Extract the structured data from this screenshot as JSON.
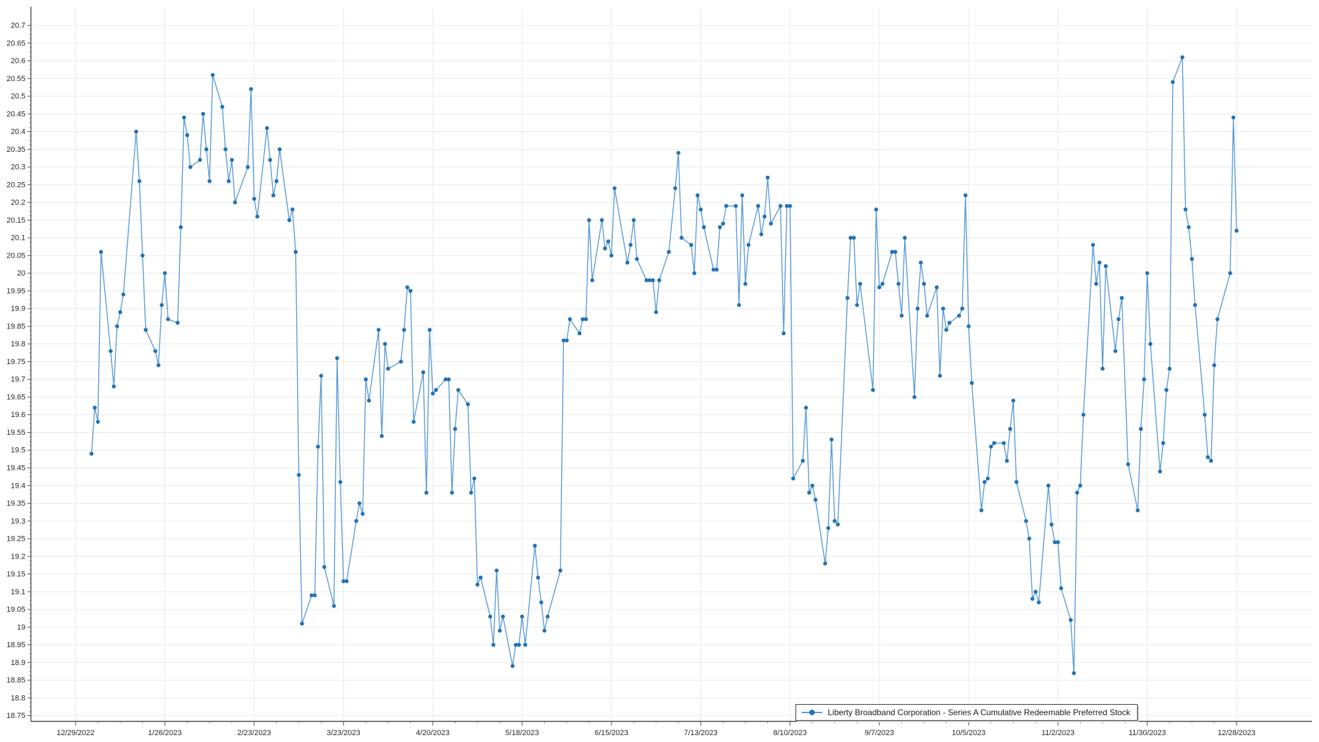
{
  "legend": {
    "label": "Liberty Broadband Corporation - Series A Cumulative Redeemable Preferred Stock"
  },
  "colors": {
    "line": "#5b9bd5",
    "marker": "#2273b2",
    "grid": "#e9e9e9",
    "axis": "#4d4d4d",
    "label": "#262626",
    "background": "#ffffff"
  },
  "chart_data": {
    "type": "line",
    "title": "",
    "xlabel": "",
    "ylabel": "",
    "legend_position": "bottom-right-inside",
    "grid": true,
    "marker": "dot",
    "ylim": [
      18.75,
      20.7
    ],
    "y_tick_step": 0.05,
    "y_ticks": [
      "20.7",
      "20.65",
      "20.6",
      "20.55",
      "20.5",
      "20.45",
      "20.4",
      "20.35",
      "20.3",
      "20.25",
      "20.2",
      "20.15",
      "20.1",
      "20.05",
      "20",
      "19.95",
      "19.9",
      "19.85",
      "19.8",
      "19.75",
      "19.7",
      "19.65",
      "19.6",
      "19.55",
      "19.5",
      "19.45",
      "19.4",
      "19.35",
      "19.3",
      "19.25",
      "19.2",
      "19.15",
      "19.1",
      "19.05",
      "19",
      "18.95",
      "18.9",
      "18.85",
      "18.8",
      "18.75"
    ],
    "x_ticks": [
      "12/29/2022",
      "1/26/2023",
      "2/23/2023",
      "3/23/2023",
      "4/20/2023",
      "5/18/2023",
      "6/15/2023",
      "7/13/2023",
      "8/10/2023",
      "9/7/2023",
      "10/5/2023",
      "11/2/2023",
      "11/30/2023",
      "12/28/2023"
    ],
    "x_range": [
      "2022-12-29",
      "2023-12-28"
    ],
    "series_name": "Liberty Broadband Corporation - Series A Cumulative Redeemable Preferred Stock",
    "points": [
      [
        "2023-01-03",
        19.49
      ],
      [
        "2023-01-04",
        19.62
      ],
      [
        "2023-01-05",
        19.58
      ],
      [
        "2023-01-06",
        20.06
      ],
      [
        "2023-01-09",
        19.78
      ],
      [
        "2023-01-10",
        19.68
      ],
      [
        "2023-01-11",
        19.85
      ],
      [
        "2023-01-12",
        19.89
      ],
      [
        "2023-01-13",
        19.94
      ],
      [
        "2023-01-17",
        20.4
      ],
      [
        "2023-01-18",
        20.26
      ],
      [
        "2023-01-19",
        20.05
      ],
      [
        "2023-01-20",
        19.84
      ],
      [
        "2023-01-23",
        19.78
      ],
      [
        "2023-01-24",
        19.74
      ],
      [
        "2023-01-25",
        19.91
      ],
      [
        "2023-01-26",
        20.0
      ],
      [
        "2023-01-27",
        19.87
      ],
      [
        "2023-01-30",
        19.86
      ],
      [
        "2023-01-31",
        20.13
      ],
      [
        "2023-02-01",
        20.44
      ],
      [
        "2023-02-02",
        20.39
      ],
      [
        "2023-02-03",
        20.3
      ],
      [
        "2023-02-06",
        20.32
      ],
      [
        "2023-02-07",
        20.45
      ],
      [
        "2023-02-08",
        20.35
      ],
      [
        "2023-02-09",
        20.26
      ],
      [
        "2023-02-10",
        20.56
      ],
      [
        "2023-02-13",
        20.47
      ],
      [
        "2023-02-14",
        20.35
      ],
      [
        "2023-02-15",
        20.26
      ],
      [
        "2023-02-16",
        20.32
      ],
      [
        "2023-02-17",
        20.2
      ],
      [
        "2023-02-21",
        20.3
      ],
      [
        "2023-02-22",
        20.52
      ],
      [
        "2023-02-23",
        20.21
      ],
      [
        "2023-02-24",
        20.16
      ],
      [
        "2023-02-27",
        20.41
      ],
      [
        "2023-02-28",
        20.32
      ],
      [
        "2023-03-01",
        20.22
      ],
      [
        "2023-03-02",
        20.26
      ],
      [
        "2023-03-03",
        20.35
      ],
      [
        "2023-03-06",
        20.15
      ],
      [
        "2023-03-07",
        20.18
      ],
      [
        "2023-03-08",
        20.06
      ],
      [
        "2023-03-09",
        19.43
      ],
      [
        "2023-03-10",
        19.01
      ],
      [
        "2023-03-13",
        19.09
      ],
      [
        "2023-03-14",
        19.09
      ],
      [
        "2023-03-15",
        19.51
      ],
      [
        "2023-03-16",
        19.71
      ],
      [
        "2023-03-17",
        19.17
      ],
      [
        "2023-03-20",
        19.06
      ],
      [
        "2023-03-21",
        19.76
      ],
      [
        "2023-03-22",
        19.41
      ],
      [
        "2023-03-23",
        19.13
      ],
      [
        "2023-03-24",
        19.13
      ],
      [
        "2023-03-27",
        19.3
      ],
      [
        "2023-03-28",
        19.35
      ],
      [
        "2023-03-29",
        19.32
      ],
      [
        "2023-03-30",
        19.7
      ],
      [
        "2023-03-31",
        19.64
      ],
      [
        "2023-04-03",
        19.84
      ],
      [
        "2023-04-04",
        19.54
      ],
      [
        "2023-04-05",
        19.8
      ],
      [
        "2023-04-06",
        19.73
      ],
      [
        "2023-04-10",
        19.75
      ],
      [
        "2023-04-11",
        19.84
      ],
      [
        "2023-04-12",
        19.96
      ],
      [
        "2023-04-13",
        19.95
      ],
      [
        "2023-04-14",
        19.58
      ],
      [
        "2023-04-17",
        19.72
      ],
      [
        "2023-04-18",
        19.38
      ],
      [
        "2023-04-19",
        19.84
      ],
      [
        "2023-04-20",
        19.66
      ],
      [
        "2023-04-21",
        19.67
      ],
      [
        "2023-04-24",
        19.7
      ],
      [
        "2023-04-25",
        19.7
      ],
      [
        "2023-04-26",
        19.38
      ],
      [
        "2023-04-27",
        19.56
      ],
      [
        "2023-04-28",
        19.67
      ],
      [
        "2023-05-01",
        19.63
      ],
      [
        "2023-05-02",
        19.38
      ],
      [
        "2023-05-03",
        19.42
      ],
      [
        "2023-05-04",
        19.12
      ],
      [
        "2023-05-05",
        19.14
      ],
      [
        "2023-05-08",
        19.03
      ],
      [
        "2023-05-09",
        18.95
      ],
      [
        "2023-05-10",
        19.16
      ],
      [
        "2023-05-11",
        18.99
      ],
      [
        "2023-05-12",
        19.03
      ],
      [
        "2023-05-15",
        18.89
      ],
      [
        "2023-05-16",
        18.95
      ],
      [
        "2023-05-17",
        18.95
      ],
      [
        "2023-05-18",
        19.03
      ],
      [
        "2023-05-19",
        18.95
      ],
      [
        "2023-05-22",
        19.23
      ],
      [
        "2023-05-23",
        19.14
      ],
      [
        "2023-05-24",
        19.07
      ],
      [
        "2023-05-25",
        18.99
      ],
      [
        "2023-05-26",
        19.03
      ],
      [
        "2023-05-30",
        19.16
      ],
      [
        "2023-05-31",
        19.81
      ],
      [
        "2023-06-01",
        19.81
      ],
      [
        "2023-06-02",
        19.87
      ],
      [
        "2023-06-05",
        19.83
      ],
      [
        "2023-06-06",
        19.87
      ],
      [
        "2023-06-07",
        19.87
      ],
      [
        "2023-06-08",
        20.15
      ],
      [
        "2023-06-09",
        19.98
      ],
      [
        "2023-06-12",
        20.15
      ],
      [
        "2023-06-13",
        20.07
      ],
      [
        "2023-06-14",
        20.09
      ],
      [
        "2023-06-15",
        20.05
      ],
      [
        "2023-06-16",
        20.24
      ],
      [
        "2023-06-20",
        20.03
      ],
      [
        "2023-06-21",
        20.08
      ],
      [
        "2023-06-22",
        20.15
      ],
      [
        "2023-06-23",
        20.04
      ],
      [
        "2023-06-26",
        19.98
      ],
      [
        "2023-06-27",
        19.98
      ],
      [
        "2023-06-28",
        19.98
      ],
      [
        "2023-06-29",
        19.89
      ],
      [
        "2023-06-30",
        19.98
      ],
      [
        "2023-07-03",
        20.06
      ],
      [
        "2023-07-05",
        20.24
      ],
      [
        "2023-07-06",
        20.34
      ],
      [
        "2023-07-07",
        20.1
      ],
      [
        "2023-07-10",
        20.08
      ],
      [
        "2023-07-11",
        20.0
      ],
      [
        "2023-07-12",
        20.22
      ],
      [
        "2023-07-13",
        20.18
      ],
      [
        "2023-07-14",
        20.13
      ],
      [
        "2023-07-17",
        20.01
      ],
      [
        "2023-07-18",
        20.01
      ],
      [
        "2023-07-19",
        20.13
      ],
      [
        "2023-07-20",
        20.14
      ],
      [
        "2023-07-21",
        20.19
      ],
      [
        "2023-07-24",
        20.19
      ],
      [
        "2023-07-25",
        19.91
      ],
      [
        "2023-07-26",
        20.22
      ],
      [
        "2023-07-27",
        19.97
      ],
      [
        "2023-07-28",
        20.08
      ],
      [
        "2023-07-31",
        20.19
      ],
      [
        "2023-08-01",
        20.11
      ],
      [
        "2023-08-02",
        20.16
      ],
      [
        "2023-08-03",
        20.27
      ],
      [
        "2023-08-04",
        20.14
      ],
      [
        "2023-08-07",
        20.19
      ],
      [
        "2023-08-08",
        19.83
      ],
      [
        "2023-08-09",
        20.19
      ],
      [
        "2023-08-10",
        20.19
      ],
      [
        "2023-08-11",
        19.42
      ],
      [
        "2023-08-14",
        19.47
      ],
      [
        "2023-08-15",
        19.62
      ],
      [
        "2023-08-16",
        19.38
      ],
      [
        "2023-08-17",
        19.4
      ],
      [
        "2023-08-18",
        19.36
      ],
      [
        "2023-08-21",
        19.18
      ],
      [
        "2023-08-22",
        19.28
      ],
      [
        "2023-08-23",
        19.53
      ],
      [
        "2023-08-24",
        19.3
      ],
      [
        "2023-08-25",
        19.29
      ],
      [
        "2023-08-28",
        19.93
      ],
      [
        "2023-08-29",
        20.1
      ],
      [
        "2023-08-30",
        20.1
      ],
      [
        "2023-08-31",
        19.91
      ],
      [
        "2023-09-01",
        19.97
      ],
      [
        "2023-09-05",
        19.67
      ],
      [
        "2023-09-06",
        20.18
      ],
      [
        "2023-09-07",
        19.96
      ],
      [
        "2023-09-08",
        19.97
      ],
      [
        "2023-09-11",
        20.06
      ],
      [
        "2023-09-12",
        20.06
      ],
      [
        "2023-09-13",
        19.97
      ],
      [
        "2023-09-14",
        19.88
      ],
      [
        "2023-09-15",
        20.1
      ],
      [
        "2023-09-18",
        19.65
      ],
      [
        "2023-09-19",
        19.9
      ],
      [
        "2023-09-20",
        20.03
      ],
      [
        "2023-09-21",
        19.97
      ],
      [
        "2023-09-22",
        19.88
      ],
      [
        "2023-09-25",
        19.96
      ],
      [
        "2023-09-26",
        19.71
      ],
      [
        "2023-09-27",
        19.9
      ],
      [
        "2023-09-28",
        19.84
      ],
      [
        "2023-09-29",
        19.86
      ],
      [
        "2023-10-02",
        19.88
      ],
      [
        "2023-10-03",
        19.9
      ],
      [
        "2023-10-04",
        20.22
      ],
      [
        "2023-10-05",
        19.85
      ],
      [
        "2023-10-06",
        19.69
      ],
      [
        "2023-10-09",
        19.33
      ],
      [
        "2023-10-10",
        19.41
      ],
      [
        "2023-10-11",
        19.42
      ],
      [
        "2023-10-12",
        19.51
      ],
      [
        "2023-10-13",
        19.52
      ],
      [
        "2023-10-16",
        19.52
      ],
      [
        "2023-10-17",
        19.47
      ],
      [
        "2023-10-18",
        19.56
      ],
      [
        "2023-10-19",
        19.64
      ],
      [
        "2023-10-20",
        19.41
      ],
      [
        "2023-10-23",
        19.3
      ],
      [
        "2023-10-24",
        19.25
      ],
      [
        "2023-10-25",
        19.08
      ],
      [
        "2023-10-26",
        19.1
      ],
      [
        "2023-10-27",
        19.07
      ],
      [
        "2023-10-30",
        19.4
      ],
      [
        "2023-10-31",
        19.29
      ],
      [
        "2023-11-01",
        19.24
      ],
      [
        "2023-11-02",
        19.24
      ],
      [
        "2023-11-03",
        19.11
      ],
      [
        "2023-11-06",
        19.02
      ],
      [
        "2023-11-07",
        18.87
      ],
      [
        "2023-11-08",
        19.38
      ],
      [
        "2023-11-09",
        19.4
      ],
      [
        "2023-11-10",
        19.6
      ],
      [
        "2023-11-13",
        20.08
      ],
      [
        "2023-11-14",
        19.97
      ],
      [
        "2023-11-15",
        20.03
      ],
      [
        "2023-11-16",
        19.73
      ],
      [
        "2023-11-17",
        20.02
      ],
      [
        "2023-11-20",
        19.78
      ],
      [
        "2023-11-21",
        19.87
      ],
      [
        "2023-11-22",
        19.93
      ],
      [
        "2023-11-24",
        19.46
      ],
      [
        "2023-11-27",
        19.33
      ],
      [
        "2023-11-28",
        19.56
      ],
      [
        "2023-11-29",
        19.7
      ],
      [
        "2023-11-30",
        20.0
      ],
      [
        "2023-12-01",
        19.8
      ],
      [
        "2023-12-04",
        19.44
      ],
      [
        "2023-12-05",
        19.52
      ],
      [
        "2023-12-06",
        19.67
      ],
      [
        "2023-12-07",
        19.73
      ],
      [
        "2023-12-08",
        20.54
      ],
      [
        "2023-12-11",
        20.61
      ],
      [
        "2023-12-12",
        20.18
      ],
      [
        "2023-12-13",
        20.13
      ],
      [
        "2023-12-14",
        20.04
      ],
      [
        "2023-12-15",
        19.91
      ],
      [
        "2023-12-18",
        19.6
      ],
      [
        "2023-12-19",
        19.48
      ],
      [
        "2023-12-20",
        19.47
      ],
      [
        "2023-12-21",
        19.74
      ],
      [
        "2023-12-22",
        19.87
      ],
      [
        "2023-12-26",
        20.0
      ],
      [
        "2023-12-27",
        20.44
      ],
      [
        "2023-12-28",
        20.12
      ]
    ]
  },
  "layout_note": "daily close price line chart, dot markers, legend box bottom right inside plot"
}
